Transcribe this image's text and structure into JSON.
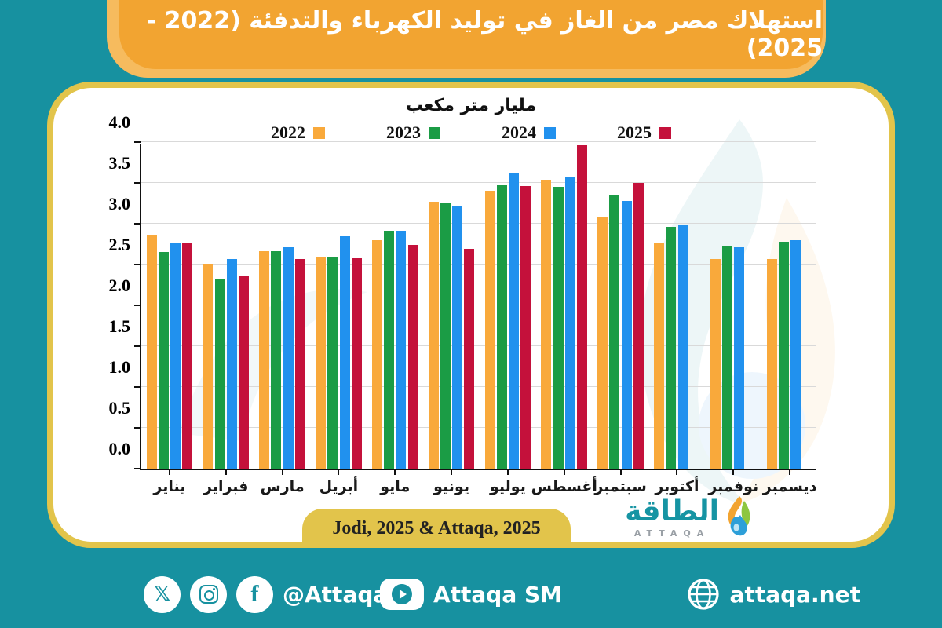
{
  "title": "استهلاك مصر من الغاز في توليد الكهرباء والتدفئة (2022 - 2025)",
  "chart_data": {
    "type": "bar",
    "title": "استهلاك مصر من الغاز في توليد الكهرباء والتدفئة (2022 - 2025)",
    "unit_label": "مليار متر مكعب",
    "ylabel": "مليار متر مكعب",
    "xlabel": "",
    "ylim": [
      0,
      4
    ],
    "ytick_step": 0.5,
    "grid": true,
    "legend_position": "top",
    "categories": [
      "يناير",
      "فبراير",
      "مارس",
      "أبريل",
      "مايو",
      "يونيو",
      "يوليو",
      "أغسطس",
      "سبتمبر",
      "أكتوبر",
      "نوفمبر",
      "ديسمبر"
    ],
    "series": [
      {
        "name": "2022",
        "color": "#F9A93B",
        "values": [
          2.86,
          2.51,
          2.66,
          2.59,
          2.8,
          3.27,
          3.4,
          3.54,
          3.08,
          2.77,
          2.57,
          2.57
        ]
      },
      {
        "name": "2023",
        "color": "#1B9C45",
        "values": [
          2.65,
          2.32,
          2.66,
          2.6,
          2.91,
          3.26,
          3.47,
          3.45,
          3.35,
          2.96,
          2.72,
          2.78
        ]
      },
      {
        "name": "2024",
        "color": "#2191EE",
        "values": [
          2.77,
          2.57,
          2.71,
          2.85,
          2.91,
          3.21,
          3.62,
          3.58,
          3.28,
          2.98,
          2.71,
          2.8
        ]
      },
      {
        "name": "2025",
        "color": "#C4113B",
        "values": [
          2.77,
          2.36,
          2.57,
          2.58,
          2.74,
          2.69,
          3.46,
          3.96,
          3.5,
          null,
          null,
          null
        ]
      }
    ]
  },
  "source": {
    "label": "Jodi, 2025 & Attaqa, 2025"
  },
  "logo": {
    "arabic": "الطاقة",
    "latin": "ATTAQA"
  },
  "footer": {
    "handle": "@Attaqa2",
    "sm_label": "Attaqa SM",
    "website": "attaqa.net"
  },
  "colors": {
    "background": "#1791A0",
    "banner": "#F2A431",
    "banner_back": "#F6BB5E",
    "card_border": "#E2C44B",
    "bar_2022": "#F9A93B",
    "bar_2023": "#1B9C45",
    "bar_2024": "#2191EE",
    "bar_2025": "#C4113B"
  }
}
